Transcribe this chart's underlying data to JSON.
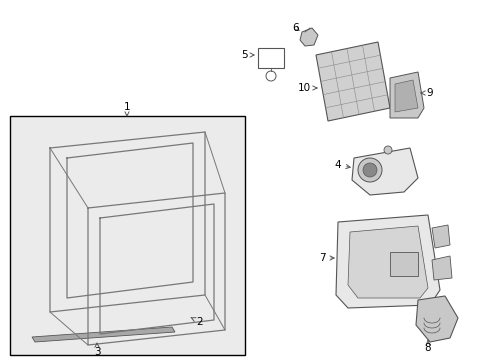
{
  "bg": "white",
  "lc": "#555555",
  "fc_light": "#e8e8e8",
  "fc_mid": "#c8c8c8",
  "fc_dark": "#aaaaaa",
  "lw_main": 0.8,
  "lw_thin": 0.5,
  "font_size": 7.5
}
